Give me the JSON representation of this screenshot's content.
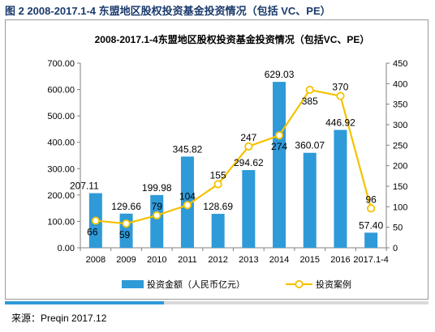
{
  "figure_caption": "图 2 2008-2017.1-4 东盟地区股权投资基金投资情况（包括 VC、PE）",
  "source": "来源：Preqin 2017.12",
  "colors": {
    "bar": "#2e9ad8",
    "line": "#f5c200",
    "marker_fill": "#ffffff",
    "frame": "#9a9a9a",
    "caption": "#1a3a6b"
  },
  "chart_data": {
    "type": "bar",
    "title": "2008-2017.1-4东盟地区股权投资基金投资情况（包括VC、PE）",
    "categories": [
      "2008",
      "2009",
      "2010",
      "2011",
      "2012",
      "2013",
      "2014",
      "2015",
      "2016",
      "2017.1-4"
    ],
    "series": [
      {
        "name": "投资金额（人民币亿元）",
        "type": "bar",
        "axis": "left",
        "values": [
          207.11,
          129.66,
          199.98,
          345.82,
          128.69,
          294.62,
          629.03,
          360.07,
          446.92,
          57.4
        ],
        "labels": [
          "207.11",
          "129.66",
          "199.98",
          "345.82",
          "128.69",
          "294.62",
          "629.03",
          "360.07",
          "446.92",
          "57.40"
        ]
      },
      {
        "name": "投资案例",
        "type": "line",
        "axis": "right",
        "values": [
          66,
          59,
          79,
          104,
          155,
          247,
          274,
          385,
          370,
          96
        ],
        "labels": [
          "66",
          "59",
          "79",
          "104",
          "155",
          "247",
          "274",
          "385",
          "370",
          "96"
        ]
      }
    ],
    "y_left": {
      "ylim": [
        0,
        700
      ],
      "ticks": [
        "0.00",
        "100.00",
        "200.00",
        "300.00",
        "400.00",
        "500.00",
        "600.00",
        "700.00"
      ]
    },
    "y_right": {
      "ylim": [
        0,
        450
      ],
      "ticks": [
        "0",
        "50",
        "100",
        "150",
        "200",
        "250",
        "300",
        "350",
        "400",
        "450"
      ]
    },
    "legend_position": "bottom",
    "grid": false
  }
}
